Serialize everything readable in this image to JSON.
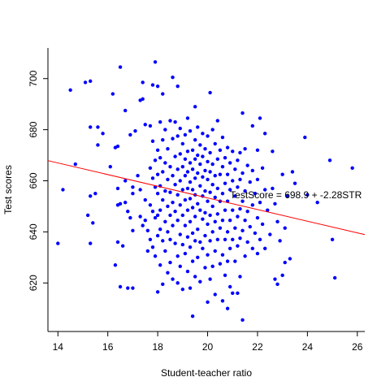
{
  "chart_data": {
    "type": "scatter",
    "title": "",
    "xlabel": "Student-teacher ratio",
    "ylabel": "Test scores",
    "xlim": [
      13.6,
      26.3
    ],
    "ylim": [
      601,
      712
    ],
    "x_ticks": [
      14,
      16,
      18,
      20,
      22,
      24,
      26
    ],
    "y_ticks": [
      620,
      640,
      660,
      680,
      700
    ],
    "grid": false,
    "legend": "none",
    "point_color": "#0000ff",
    "line_color": "#ff0000",
    "regression": {
      "intercept": 698.9,
      "slope": -2.28
    },
    "annotation": {
      "text": "TestScore = 698.9 + -2.28STR",
      "x": 20.9,
      "y": 654.5
    },
    "points": [
      [
        14.0,
        635.5
      ],
      [
        14.2,
        656.5
      ],
      [
        14.5,
        695.5
      ],
      [
        14.7,
        666.5
      ],
      [
        15.1,
        698.5
      ],
      [
        15.3,
        699.0
      ],
      [
        15.2,
        646.5
      ],
      [
        15.3,
        654.0
      ],
      [
        15.3,
        681.0
      ],
      [
        15.4,
        643.5
      ],
      [
        15.5,
        655.0
      ],
      [
        15.6,
        681.0
      ],
      [
        15.6,
        674.0
      ],
      [
        15.8,
        678.5
      ],
      [
        15.3,
        635.5
      ],
      [
        16.1,
        665.5
      ],
      [
        16.2,
        694.0
      ],
      [
        16.3,
        673.0
      ],
      [
        16.3,
        627.0
      ],
      [
        16.4,
        673.5
      ],
      [
        16.4,
        657.0
      ],
      [
        16.4,
        636.0
      ],
      [
        16.4,
        650.5
      ],
      [
        16.5,
        704.5
      ],
      [
        16.5,
        618.5
      ],
      [
        16.5,
        651.0
      ],
      [
        16.6,
        634.5
      ],
      [
        16.7,
        687.5
      ],
      [
        16.7,
        660.0
      ],
      [
        16.7,
        651.5
      ],
      [
        16.8,
        648.0
      ],
      [
        16.8,
        618.0
      ],
      [
        16.9,
        645.5
      ],
      [
        16.9,
        678.0
      ],
      [
        17.0,
        657.5
      ],
      [
        17.0,
        655.0
      ],
      [
        17.0,
        640.5
      ],
      [
        17.0,
        618.0
      ],
      [
        17.1,
        679.5
      ],
      [
        17.2,
        662.0
      ],
      [
        17.3,
        691.5
      ],
      [
        17.3,
        656.5
      ],
      [
        17.3,
        646.0
      ],
      [
        17.4,
        698.5
      ],
      [
        17.4,
        692.0
      ],
      [
        17.4,
        642.5
      ],
      [
        17.5,
        682.0
      ],
      [
        17.5,
        652.5
      ],
      [
        17.5,
        644.5
      ],
      [
        17.6,
        640.5
      ],
      [
        17.6,
        632.5
      ],
      [
        17.7,
        681.5
      ],
      [
        17.7,
        665.0
      ],
      [
        17.7,
        650.5
      ],
      [
        17.7,
        637.0
      ],
      [
        17.8,
        697.5
      ],
      [
        17.8,
        675.5
      ],
      [
        17.8,
        661.0
      ],
      [
        17.8,
        648.0
      ],
      [
        17.8,
        634.0
      ],
      [
        17.9,
        706.5
      ],
      [
        17.9,
        668.0
      ],
      [
        17.9,
        657.5
      ],
      [
        17.9,
        645.5
      ],
      [
        17.9,
        630.5
      ],
      [
        18.0,
        697.0
      ],
      [
        18.0,
        672.0
      ],
      [
        18.0,
        662.5
      ],
      [
        18.0,
        655.0
      ],
      [
        18.0,
        646.5
      ],
      [
        18.0,
        638.5
      ],
      [
        18.0,
        616.5
      ],
      [
        18.1,
        683.0
      ],
      [
        18.1,
        669.0
      ],
      [
        18.1,
        658.0
      ],
      [
        18.1,
        648.5
      ],
      [
        18.1,
        641.0
      ],
      [
        18.1,
        627.0
      ],
      [
        18.2,
        694.0
      ],
      [
        18.2,
        676.0
      ],
      [
        18.2,
        663.5
      ],
      [
        18.2,
        652.5
      ],
      [
        18.2,
        636.5
      ],
      [
        18.2,
        619.5
      ],
      [
        18.3,
        680.0
      ],
      [
        18.3,
        667.0
      ],
      [
        18.3,
        656.0
      ],
      [
        18.3,
        644.0
      ],
      [
        18.3,
        632.5
      ],
      [
        18.4,
        672.5
      ],
      [
        18.4,
        660.5
      ],
      [
        18.4,
        650.0
      ],
      [
        18.4,
        640.0
      ],
      [
        18.4,
        624.0
      ],
      [
        18.5,
        683.5
      ],
      [
        18.5,
        665.5
      ],
      [
        18.5,
        655.5
      ],
      [
        18.5,
        646.5
      ],
      [
        18.5,
        637.0
      ],
      [
        18.5,
        628.0
      ],
      [
        18.6,
        700.5
      ],
      [
        18.6,
        676.5
      ],
      [
        18.6,
        662.0
      ],
      [
        18.6,
        651.5
      ],
      [
        18.6,
        642.5
      ],
      [
        18.6,
        621.5
      ],
      [
        18.7,
        683.0
      ],
      [
        18.7,
        669.5
      ],
      [
        18.7,
        658.5
      ],
      [
        18.7,
        648.0
      ],
      [
        18.7,
        635.5
      ],
      [
        18.8,
        697.0
      ],
      [
        18.8,
        677.5
      ],
      [
        18.8,
        664.5
      ],
      [
        18.8,
        654.5
      ],
      [
        18.8,
        644.5
      ],
      [
        18.8,
        630.5
      ],
      [
        18.8,
        620.0
      ],
      [
        18.9,
        680.5
      ],
      [
        18.9,
        670.5
      ],
      [
        18.9,
        660.0
      ],
      [
        18.9,
        650.5
      ],
      [
        18.9,
        639.0
      ],
      [
        18.9,
        626.5
      ],
      [
        19.0,
        674.5
      ],
      [
        19.0,
        665.5
      ],
      [
        19.0,
        656.5
      ],
      [
        19.0,
        646.5
      ],
      [
        19.0,
        635.0
      ],
      [
        19.0,
        617.5
      ],
      [
        19.1,
        678.0
      ],
      [
        19.1,
        668.5
      ],
      [
        19.1,
        662.0
      ],
      [
        19.1,
        652.5
      ],
      [
        19.1,
        642.5
      ],
      [
        19.1,
        631.5
      ],
      [
        19.2,
        684.5
      ],
      [
        19.2,
        671.5
      ],
      [
        19.2,
        663.5
      ],
      [
        19.2,
        657.0
      ],
      [
        19.2,
        648.5
      ],
      [
        19.2,
        638.0
      ],
      [
        19.2,
        624.5
      ],
      [
        19.3,
        679.5
      ],
      [
        19.3,
        667.0
      ],
      [
        19.3,
        659.5
      ],
      [
        19.3,
        653.0
      ],
      [
        19.3,
        644.0
      ],
      [
        19.3,
        634.0
      ],
      [
        19.3,
        618.0
      ],
      [
        19.4,
        672.0
      ],
      [
        19.4,
        664.5
      ],
      [
        19.4,
        656.5
      ],
      [
        19.4,
        649.5
      ],
      [
        19.4,
        639.5
      ],
      [
        19.4,
        628.5
      ],
      [
        19.4,
        607.0
      ],
      [
        19.5,
        689.0
      ],
      [
        19.5,
        676.0
      ],
      [
        19.5,
        668.5
      ],
      [
        19.5,
        661.0
      ],
      [
        19.5,
        654.5
      ],
      [
        19.5,
        646.0
      ],
      [
        19.5,
        636.5
      ],
      [
        19.5,
        622.5
      ],
      [
        19.6,
        681.0
      ],
      [
        19.6,
        670.0
      ],
      [
        19.6,
        663.0
      ],
      [
        19.6,
        651.0
      ],
      [
        19.6,
        641.0
      ],
      [
        19.6,
        630.0
      ],
      [
        19.7,
        674.0
      ],
      [
        19.7,
        666.5
      ],
      [
        19.7,
        658.0
      ],
      [
        19.7,
        648.5
      ],
      [
        19.7,
        636.0
      ],
      [
        19.7,
        620.5
      ],
      [
        19.8,
        678.5
      ],
      [
        19.8,
        669.5
      ],
      [
        19.8,
        661.5
      ],
      [
        19.8,
        654.0
      ],
      [
        19.8,
        645.0
      ],
      [
        19.8,
        633.5
      ],
      [
        19.9,
        672.5
      ],
      [
        19.9,
        664.0
      ],
      [
        19.9,
        656.0
      ],
      [
        19.9,
        647.5
      ],
      [
        19.9,
        638.5
      ],
      [
        19.9,
        626.0
      ],
      [
        20.0,
        677.5
      ],
      [
        20.0,
        667.5
      ],
      [
        20.0,
        660.5
      ],
      [
        20.0,
        652.0
      ],
      [
        20.0,
        643.0
      ],
      [
        20.0,
        631.0
      ],
      [
        20.0,
        612.5
      ],
      [
        20.1,
        694.5
      ],
      [
        20.1,
        671.0
      ],
      [
        20.1,
        663.5
      ],
      [
        20.1,
        655.5
      ],
      [
        20.1,
        646.5
      ],
      [
        20.1,
        636.5
      ],
      [
        20.1,
        621.5
      ],
      [
        20.2,
        680.0
      ],
      [
        20.2,
        666.5
      ],
      [
        20.2,
        658.5
      ],
      [
        20.2,
        650.0
      ],
      [
        20.2,
        640.0
      ],
      [
        20.2,
        626.5
      ],
      [
        20.3,
        674.5
      ],
      [
        20.3,
        662.0
      ],
      [
        20.3,
        653.5
      ],
      [
        20.3,
        644.0
      ],
      [
        20.3,
        632.5
      ],
      [
        20.3,
        615.5
      ],
      [
        20.4,
        683.5
      ],
      [
        20.4,
        668.5
      ],
      [
        20.4,
        657.0
      ],
      [
        20.4,
        647.0
      ],
      [
        20.4,
        637.0
      ],
      [
        20.5,
        672.0
      ],
      [
        20.5,
        662.5
      ],
      [
        20.5,
        652.0
      ],
      [
        20.5,
        641.5
      ],
      [
        20.5,
        627.5
      ],
      [
        20.6,
        677.0
      ],
      [
        20.6,
        665.5
      ],
      [
        20.6,
        655.0
      ],
      [
        20.6,
        644.5
      ],
      [
        20.6,
        631.0
      ],
      [
        20.6,
        613.0
      ],
      [
        20.7,
        669.0
      ],
      [
        20.7,
        659.0
      ],
      [
        20.7,
        648.5
      ],
      [
        20.7,
        637.0
      ],
      [
        20.7,
        623.0
      ],
      [
        20.8,
        673.0
      ],
      [
        20.8,
        662.5
      ],
      [
        20.8,
        652.0
      ],
      [
        20.8,
        640.0
      ],
      [
        20.8,
        628.5
      ],
      [
        20.8,
        610.0
      ],
      [
        20.9,
        667.0
      ],
      [
        20.9,
        656.5
      ],
      [
        20.9,
        644.5
      ],
      [
        20.9,
        633.5
      ],
      [
        20.9,
        618.5
      ],
      [
        21.0,
        671.5
      ],
      [
        21.0,
        660.0
      ],
      [
        21.0,
        648.5
      ],
      [
        21.0,
        637.0
      ],
      [
        21.0,
        616.0
      ],
      [
        21.1,
        664.5
      ],
      [
        21.1,
        654.0
      ],
      [
        21.1,
        641.5
      ],
      [
        21.1,
        628.5
      ],
      [
        21.2,
        668.0
      ],
      [
        21.2,
        657.5
      ],
      [
        21.2,
        646.0
      ],
      [
        21.2,
        634.5
      ],
      [
        21.2,
        616.0
      ],
      [
        21.3,
        671.0
      ],
      [
        21.3,
        660.5
      ],
      [
        21.3,
        649.0
      ],
      [
        21.3,
        637.5
      ],
      [
        21.3,
        622.5
      ],
      [
        21.4,
        686.5
      ],
      [
        21.4,
        663.0
      ],
      [
        21.4,
        652.0
      ],
      [
        21.4,
        640.5
      ],
      [
        21.4,
        605.5
      ],
      [
        21.5,
        672.5
      ],
      [
        21.5,
        656.0
      ],
      [
        21.5,
        644.5
      ],
      [
        21.5,
        630.5
      ],
      [
        21.6,
        666.0
      ],
      [
        21.6,
        648.0
      ],
      [
        21.6,
        636.0
      ],
      [
        21.7,
        659.5
      ],
      [
        21.7,
        642.0
      ],
      [
        21.8,
        681.5
      ],
      [
        21.8,
        664.0
      ],
      [
        21.8,
        650.5
      ],
      [
        21.8,
        633.5
      ],
      [
        21.9,
        655.0
      ],
      [
        21.9,
        639.5
      ],
      [
        22.0,
        672.0
      ],
      [
        22.0,
        660.5
      ],
      [
        22.0,
        645.5
      ],
      [
        22.0,
        631.5
      ],
      [
        22.1,
        684.5
      ],
      [
        22.1,
        651.5
      ],
      [
        22.1,
        637.0
      ],
      [
        22.2,
        665.0
      ],
      [
        22.2,
        643.0
      ],
      [
        22.3,
        678.5
      ],
      [
        22.3,
        656.5
      ],
      [
        22.3,
        633.5
      ],
      [
        22.4,
        648.5
      ],
      [
        22.5,
        639.0
      ],
      [
        22.6,
        671.5
      ],
      [
        22.6,
        657.0
      ],
      [
        22.7,
        651.0
      ],
      [
        22.7,
        621.5
      ],
      [
        22.8,
        644.0
      ],
      [
        22.8,
        619.5
      ],
      [
        22.9,
        636.5
      ],
      [
        23.0,
        662.5
      ],
      [
        23.0,
        623.0
      ],
      [
        23.1,
        641.5
      ],
      [
        23.1,
        628.0
      ],
      [
        23.2,
        654.0
      ],
      [
        23.3,
        629.5
      ],
      [
        23.4,
        663.5
      ],
      [
        23.5,
        659.0
      ],
      [
        23.9,
        677.0
      ],
      [
        24.0,
        654.5
      ],
      [
        24.4,
        651.5
      ],
      [
        24.9,
        668.0
      ],
      [
        25.0,
        637.0
      ],
      [
        25.1,
        622.0
      ],
      [
        25.8,
        665.0
      ]
    ]
  }
}
